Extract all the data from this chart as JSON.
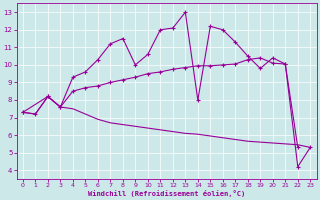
{
  "xlabel": "Windchill (Refroidissement éolien,°C)",
  "bg_color": "#cce8e8",
  "line_color": "#990099",
  "xlim": [
    -0.5,
    23.5
  ],
  "ylim": [
    3.5,
    13.5
  ],
  "yticks": [
    4,
    5,
    6,
    7,
    8,
    9,
    10,
    11,
    12,
    13
  ],
  "xticks": [
    0,
    1,
    2,
    3,
    4,
    5,
    6,
    7,
    8,
    9,
    10,
    11,
    12,
    13,
    14,
    15,
    16,
    17,
    18,
    19,
    20,
    21,
    22,
    23
  ],
  "line_smooth_x": [
    0,
    1,
    2,
    3,
    4,
    5,
    6,
    7,
    8,
    9,
    10,
    11,
    12,
    13,
    14,
    15,
    16,
    17,
    18,
    19,
    20,
    21,
    22
  ],
  "line_smooth_y": [
    7.3,
    7.2,
    8.2,
    7.6,
    8.5,
    8.7,
    8.8,
    9.0,
    9.15,
    9.3,
    9.5,
    9.6,
    9.75,
    9.85,
    9.95,
    9.95,
    10.0,
    10.05,
    10.3,
    10.4,
    10.1,
    10.05,
    5.3
  ],
  "line_diag_x": [
    0,
    1,
    2,
    3,
    4,
    5,
    6,
    7,
    8,
    9,
    10,
    11,
    12,
    13,
    14,
    15,
    16,
    17,
    18,
    19,
    20,
    21,
    22,
    23
  ],
  "line_diag_y": [
    7.3,
    7.2,
    8.2,
    7.6,
    7.5,
    7.2,
    6.9,
    6.7,
    6.6,
    6.5,
    6.4,
    6.3,
    6.2,
    6.1,
    6.05,
    5.95,
    5.85,
    5.75,
    5.65,
    5.6,
    5.55,
    5.5,
    5.45,
    5.3
  ],
  "line_jagged_x": [
    0,
    2,
    3,
    4,
    5,
    6,
    7,
    8,
    9,
    10,
    11,
    12,
    13,
    14,
    15,
    16,
    17,
    18,
    19,
    20,
    21,
    22,
    23
  ],
  "line_jagged_y": [
    7.3,
    8.2,
    7.6,
    9.3,
    9.6,
    10.3,
    11.2,
    11.5,
    10.0,
    10.6,
    12.0,
    12.1,
    13.0,
    8.0,
    12.2,
    12.0,
    11.3,
    10.5,
    9.8,
    10.4,
    10.05,
    4.2,
    5.3
  ]
}
